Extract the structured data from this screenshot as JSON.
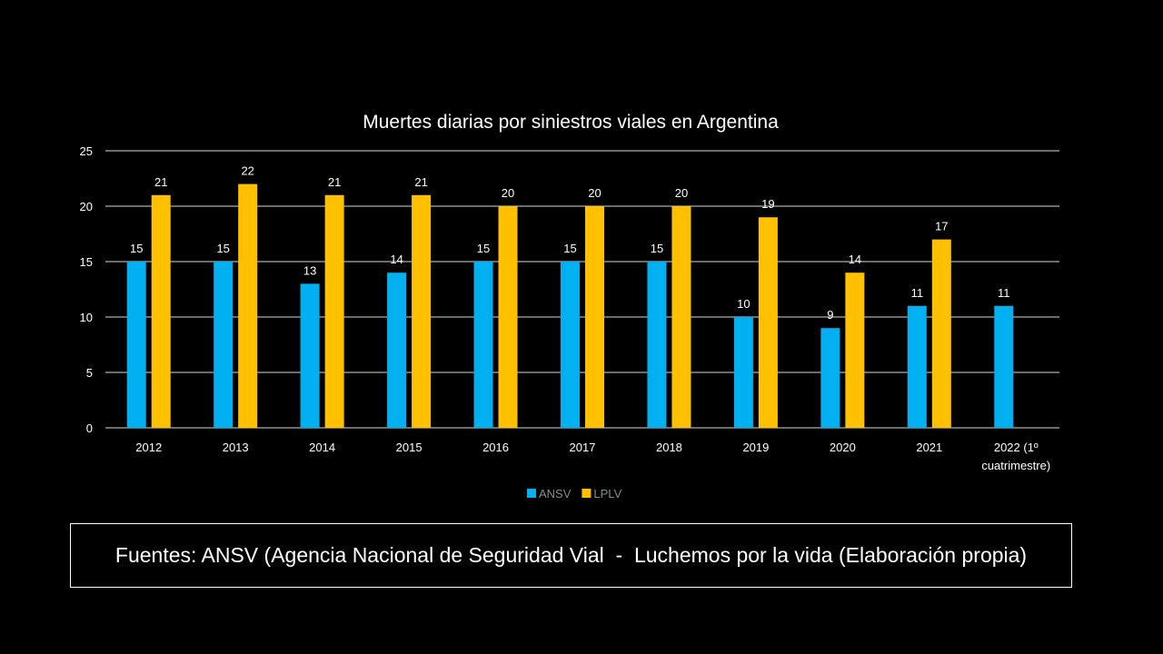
{
  "chart_data": {
    "type": "bar",
    "title": "Muertes diarias por siniestros viales en Argentina",
    "categories": [
      "2012",
      "2013",
      "2014",
      "2015",
      "2016",
      "2017",
      "2018",
      "2019",
      "2020",
      "2021",
      "2022 (1º cuatrimestre)"
    ],
    "category_lines": [
      [
        "2012"
      ],
      [
        "2013"
      ],
      [
        "2014"
      ],
      [
        "2015"
      ],
      [
        "2016"
      ],
      [
        "2017"
      ],
      [
        "2018"
      ],
      [
        "2019"
      ],
      [
        "2020"
      ],
      [
        "2021"
      ],
      [
        "2022 (1º",
        "cuatrimestre)"
      ]
    ],
    "series": [
      {
        "name": "ANSV",
        "color": "#00b0f0",
        "values": [
          15,
          15,
          13,
          14,
          15,
          15,
          15,
          10,
          9,
          11,
          11
        ]
      },
      {
        "name": "LPLV",
        "color": "#ffc000",
        "values": [
          21,
          22,
          21,
          21,
          20,
          20,
          20,
          19,
          14,
          17,
          null
        ]
      }
    ],
    "ylim": [
      0,
      25
    ],
    "yticks": [
      0,
      5,
      10,
      15,
      20,
      25
    ],
    "grid": true,
    "legend": "bottom"
  },
  "source": "Fuentes: ANSV (Agencia Nacional de Seguridad Vial  -  Luchemos por la vida (Elaboración propia)"
}
